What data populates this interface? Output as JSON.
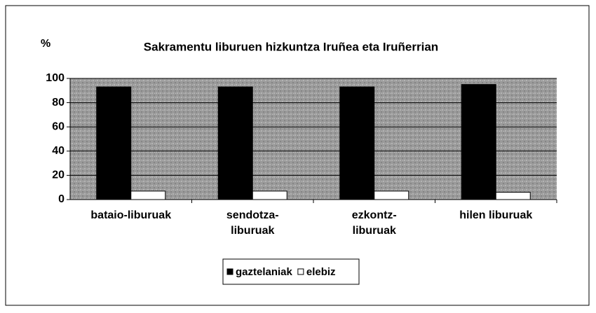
{
  "chart_data": {
    "type": "bar",
    "title": "Sakramentu liburuen hizkuntza Iruñea eta Iruñerrian",
    "ylabel": "%",
    "categories": [
      "bataio-liburuak",
      "sendotza-liburuak",
      "ezkontz-liburuak",
      "hilen liburuak"
    ],
    "series": [
      {
        "name": "gaztelaniak",
        "color": "#000000",
        "values": [
          93,
          93,
          93,
          95
        ]
      },
      {
        "name": "elebiz",
        "color": "#ffffff",
        "values": [
          7,
          7,
          7,
          6
        ]
      }
    ],
    "ylim": [
      0,
      100
    ],
    "yticks": [
      0,
      20,
      40,
      60,
      80,
      100
    ],
    "grid": true,
    "legend": "bottom"
  }
}
